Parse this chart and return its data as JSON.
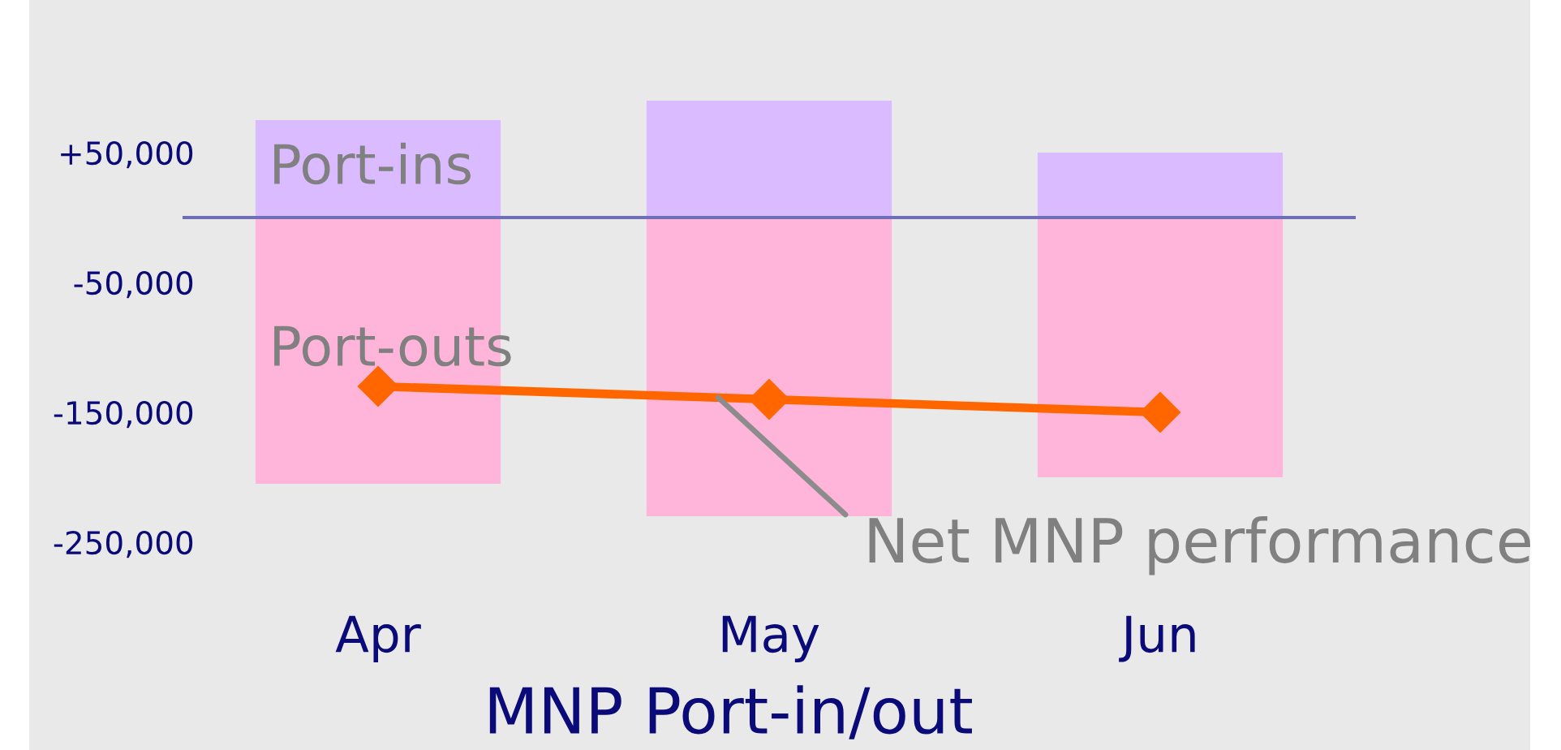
{
  "chart_data": {
    "type": "bar",
    "stacked": true,
    "categories": [
      "Apr",
      "May",
      "Jun"
    ],
    "series": [
      {
        "name": "Port-ins",
        "color": "#dbbbff",
        "values": [
          75000,
          90000,
          50000
        ]
      },
      {
        "name": "Port-outs",
        "color": "#ffb5d9",
        "values": [
          -205000,
          -230000,
          -200000
        ]
      },
      {
        "name": "Net MNP performance",
        "type": "line",
        "color": "#ff6600",
        "values": [
          -130000,
          -140000,
          -150000
        ]
      }
    ],
    "marker": "diamond",
    "xlabel": "MNP Port-in/out",
    "ylim": [
      -250000,
      90000
    ],
    "yticks": [
      {
        "value": 50000,
        "label": "+50,000"
      },
      {
        "value": -50000,
        "label": "-50,000"
      },
      {
        "value": -150000,
        "label": "-150,000"
      },
      {
        "value": -250000,
        "label": "-250,000"
      }
    ],
    "ref_lines": [
      {
        "axis": "y",
        "value": 0,
        "color": "#6f6fb8"
      }
    ]
  }
}
